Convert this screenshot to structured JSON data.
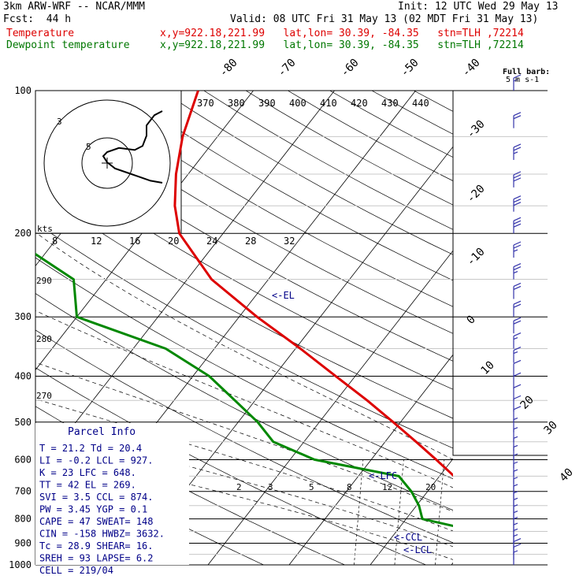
{
  "header": {
    "model": "3km ARW-WRF -- NCAR/MMM",
    "init": "Init: 12 UTC Wed 29 May 13",
    "fcst": "Fcst:  44 h",
    "valid": "Valid: 08 UTC Fri 31 May 13 (02 MDT Fri 31 May 13)",
    "temp_label": "Temperature",
    "dew_label": "Dewpoint temperature",
    "temp_loc": "x,y=922.18,221.99   lat,lon= 30.39, -84.35   stn=TLH ,72214",
    "dew_loc": "x,y=922.18,221.99   lat,lon= 30.39, -84.35   stn=TLH ,72214"
  },
  "barb_key": {
    "line1": "Full barb:",
    "line2": "5 m s-1"
  },
  "parcel_info": {
    "title": "Parcel Info",
    "lines": [
      "T  =    21.2  Td =  20.4",
      "LI =    -0.2  LCL =  927.",
      "K  =     23  LFC =  648.",
      "TT =     42  EL  =  269.",
      "SVI =    3.5  CCL =  874.",
      "PW =   3.45  YGP =   0.1",
      "CAPE =    47  SWEAT=  148",
      "CIN =  -158  HWBZ= 3632.",
      "Tc =   28.9  SHEAR=  16.",
      "SREH =    93  LAPSE=  6.2",
      "CELL = 219/04"
    ]
  },
  "annotations": {
    "el": "<-EL",
    "lfc": "<-LFC",
    "ccl": "<-CCL",
    "lcl": "<-LCL"
  },
  "hodograph": {
    "unit": "kts",
    "rings": [
      "3",
      "5"
    ]
  },
  "colors": {
    "temperature": "#dd0000",
    "dewpoint": "#008800",
    "barbs": "#3333aa",
    "annot": "#000088"
  },
  "chart_data": {
    "type": "line",
    "title": "",
    "ylabel": "",
    "y_scale": "log",
    "pressure_ticks": [
      100,
      200,
      300,
      400,
      500,
      600,
      700,
      800,
      900,
      1000
    ],
    "isotherm_labels": [
      -80,
      -70,
      -60,
      -50,
      -40,
      -30,
      -20,
      -10,
      0,
      10,
      20,
      30,
      40
    ],
    "dry_adiabat_labels": [
      270,
      280,
      290
    ],
    "moist_adiabat_labels": [
      370,
      380,
      390,
      400,
      410,
      420,
      430,
      440
    ],
    "mixing_ratio_labels": [
      2,
      3,
      5,
      8,
      12,
      20
    ],
    "mixing_ratio_top_labels": [
      8,
      12,
      16,
      20,
      24,
      28,
      32
    ],
    "series": [
      {
        "name": "Temperature",
        "pressure": [
          1000,
          975,
          950,
          925,
          900,
          850,
          800,
          750,
          700,
          650,
          600,
          550,
          500,
          450,
          400,
          350,
          300,
          250,
          200,
          175,
          150,
          125,
          100
        ],
        "temp_c": [
          23.0,
          21.2,
          19.8,
          18.6,
          17.2,
          14.2,
          11.5,
          8.6,
          5.4,
          1.8,
          -2.0,
          -6.2,
          -10.9,
          -16.2,
          -22.4,
          -29.4,
          -37.8,
          -47.0,
          -55.4,
          -58.6,
          -61.5,
          -64.3,
          -66.8
        ]
      },
      {
        "name": "Dewpoint temperature",
        "pressure": [
          1000,
          975,
          950,
          925,
          900,
          850,
          800,
          750,
          700,
          650,
          600,
          550,
          500,
          450,
          400,
          350,
          300,
          250,
          200,
          175,
          150,
          125,
          100
        ],
        "temp_c": [
          21.2,
          20.4,
          19.4,
          17.9,
          16.0,
          10.0,
          2.0,
          0.3,
          -2.0,
          -5.0,
          -17.0,
          -23.8,
          -27.6,
          -32.5,
          -38.0,
          -46.0,
          -60.0,
          -64.0,
          -77.0,
          -79.5,
          -82.0,
          -85.0,
          -88.0
        ]
      }
    ],
    "wind_barbs_ms": {
      "pressure": [
        1000,
        975,
        950,
        925,
        900,
        875,
        850,
        825,
        800,
        775,
        750,
        725,
        700,
        675,
        650,
        625,
        600,
        575,
        550,
        525,
        500,
        475,
        450,
        425,
        400,
        375,
        350,
        325,
        300,
        275,
        250,
        225,
        200,
        180,
        160,
        140,
        120,
        100
      ],
      "speed": [
        4,
        5,
        5,
        4,
        4,
        3,
        3,
        3,
        3,
        3,
        3,
        3,
        3,
        3,
        3,
        3,
        4,
        4,
        4,
        4,
        5,
        6,
        6,
        6,
        7,
        8,
        9,
        10,
        11,
        12,
        13,
        14,
        15,
        15,
        15,
        14,
        12,
        8
      ]
    },
    "hodograph_track": [
      [
        0,
        0
      ],
      [
        3,
        -1
      ],
      [
        6,
        -3
      ],
      [
        9,
        -5
      ],
      [
        12,
        -7
      ],
      [
        14,
        -10
      ],
      [
        15,
        -13
      ],
      [
        14,
        -15
      ],
      [
        11,
        -17
      ],
      [
        7,
        -16
      ],
      [
        5,
        -18
      ],
      [
        4,
        -23
      ],
      [
        4,
        -28
      ],
      [
        2,
        -33
      ],
      [
        0,
        -35
      ]
    ]
  }
}
